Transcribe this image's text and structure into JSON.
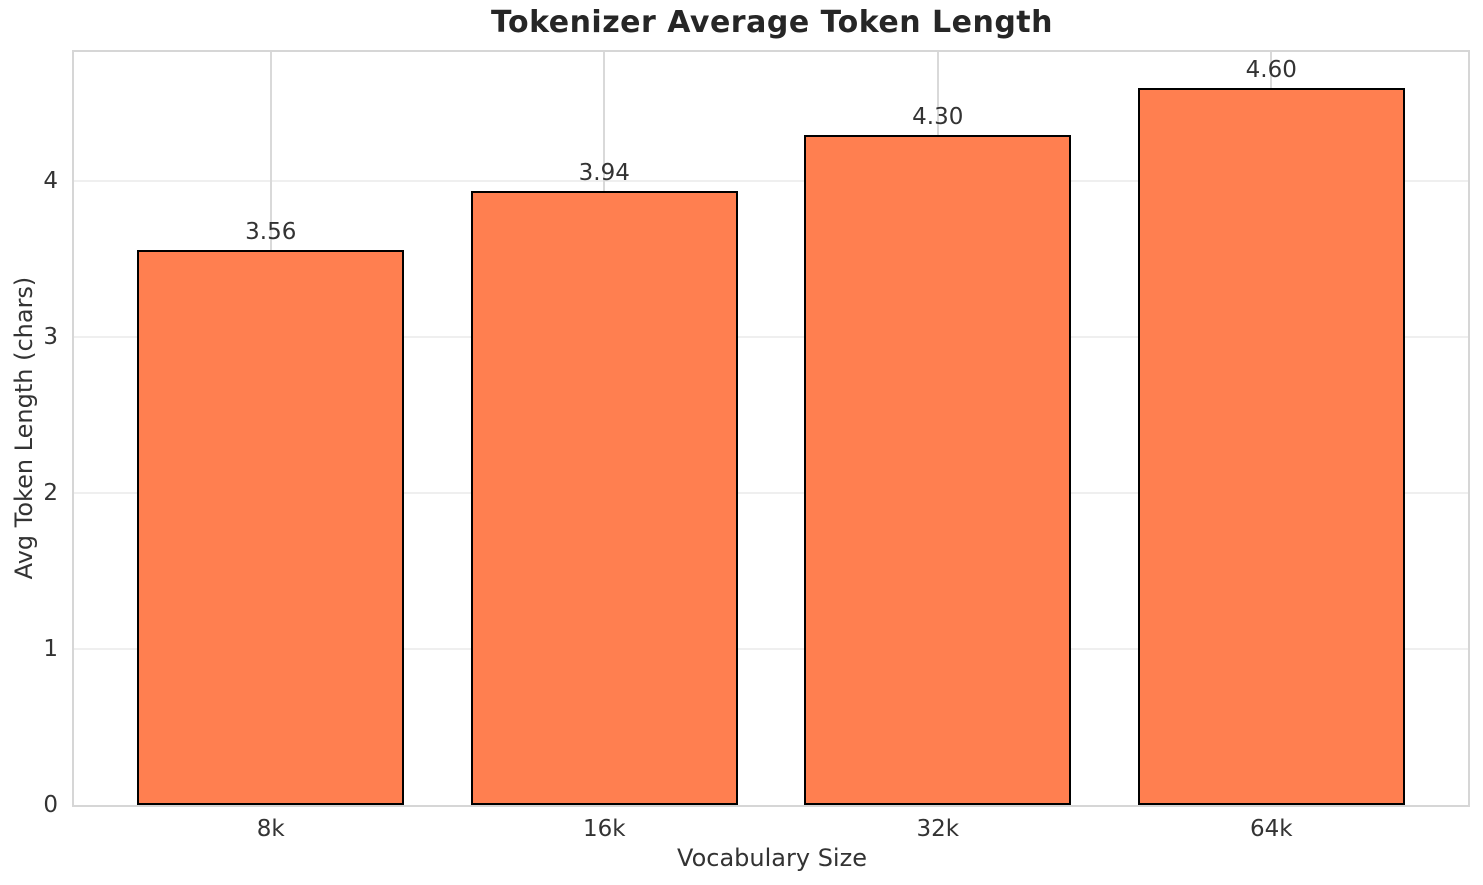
{
  "chart_data": {
    "type": "bar",
    "title": "Tokenizer Average Token Length",
    "xlabel": "Vocabulary Size",
    "ylabel": "Avg Token Length (chars)",
    "categories": [
      "8k",
      "16k",
      "32k",
      "64k"
    ],
    "values": [
      3.56,
      3.94,
      4.3,
      4.6
    ],
    "value_labels": [
      "3.56",
      "3.94",
      "4.30",
      "4.60"
    ],
    "yticks": [
      0,
      1,
      2,
      3,
      4
    ],
    "ytick_labels": [
      "0",
      "1",
      "2",
      "3",
      "4"
    ],
    "ylim": [
      0,
      4.83
    ],
    "xlim": [
      -0.59,
      3.59
    ],
    "bar_width_units": 0.8,
    "grid": true,
    "legend_position": "none",
    "colors": {
      "bar_fill": "#FF7F50",
      "bar_edge": "#000000",
      "grid_horizontal": "#efefef",
      "grid_vertical": "#d9d9d9",
      "spine": "#d6d6d6",
      "tick_text": "#333333",
      "label_text": "#333333",
      "title_text": "#262626",
      "background": "#ffffff"
    }
  }
}
